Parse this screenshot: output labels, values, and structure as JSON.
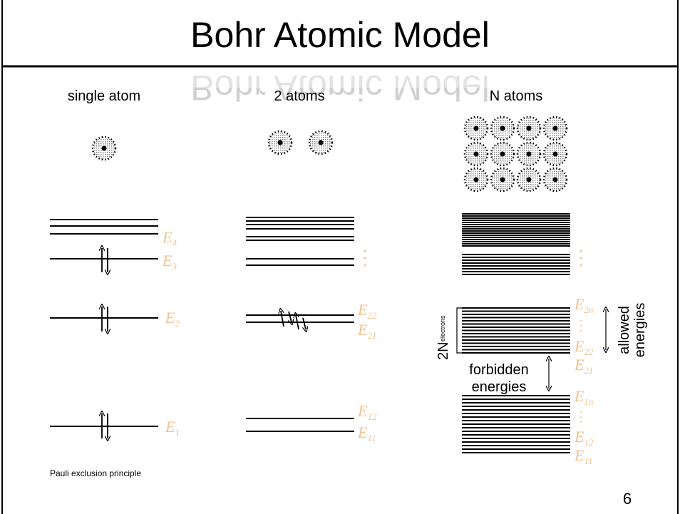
{
  "title": "Bohr Atomic Model",
  "columns": [
    "single atom",
    "2 atoms",
    "N atoms"
  ],
  "single_atom_levels": [
    {
      "base": "E",
      "sub": "4"
    },
    {
      "base": "E",
      "sub": "3"
    },
    {
      "base": "E",
      "sub": "2"
    },
    {
      "base": "E",
      "sub": "1"
    }
  ],
  "two_atom_levels": [
    {
      "base": "E",
      "sub": "22"
    },
    {
      "base": "E",
      "sub": "21"
    },
    {
      "base": "E",
      "sub": "12"
    },
    {
      "base": "E",
      "sub": "11"
    }
  ],
  "n_atom_levels": [
    {
      "base": "E",
      "sub": "2n"
    },
    {
      "base": "E",
      "sub": "22"
    },
    {
      "base": "E",
      "sub": "21"
    },
    {
      "base": "E",
      "sub": "1n"
    },
    {
      "base": "E",
      "sub": "12"
    },
    {
      "base": "E",
      "sub": "11"
    }
  ],
  "band_count": {
    "main": "2N",
    "small": "electrons"
  },
  "forbidden": [
    "forbidden",
    "energies"
  ],
  "allowed": [
    "allowed",
    "energies"
  ],
  "note": "Pauli exclusion principle",
  "page_number": "6"
}
